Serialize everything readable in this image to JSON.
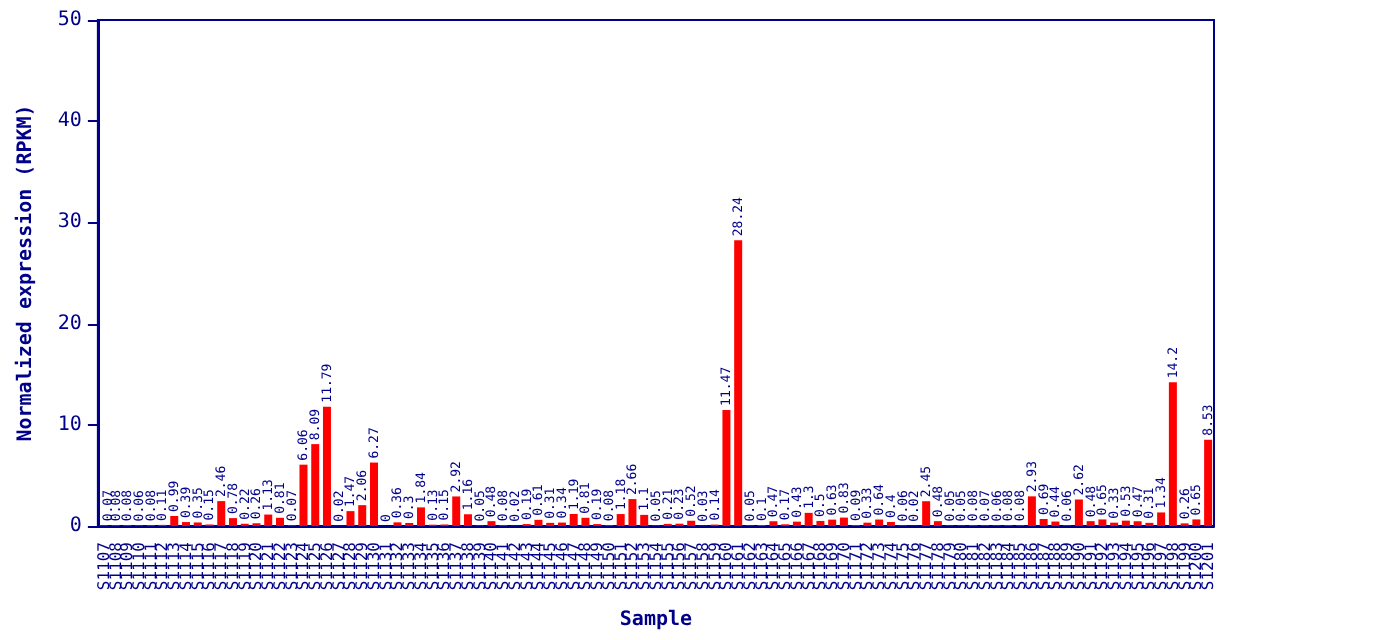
{
  "chart_data": {
    "type": "bar",
    "xlabel": "Sample",
    "ylabel": "Normalized expression (RPKM)",
    "categories": [
      "S1107",
      "S1108",
      "S1109",
      "S1110",
      "S1111",
      "S1112",
      "S1113",
      "S1114",
      "S1115",
      "S1116",
      "S1117",
      "S1118",
      "S1119",
      "S1120",
      "S1121",
      "S1122",
      "S1123",
      "S1124",
      "S1125",
      "S1126",
      "S1127",
      "S1128",
      "S1129",
      "S1130",
      "S1131",
      "S1132",
      "S1133",
      "S1134",
      "S1135",
      "S1136",
      "S1137",
      "S1138",
      "S1139",
      "S1140",
      "S1141",
      "S1142",
      "S1143",
      "S1144",
      "S1145",
      "S1146",
      "S1147",
      "S1148",
      "S1149",
      "S1150",
      "S1151",
      "S1152",
      "S1153",
      "S1154",
      "S1155",
      "S1156",
      "S1157",
      "S1158",
      "S1159",
      "S1160",
      "S1161",
      "S1162",
      "S1163",
      "S1164",
      "S1165",
      "S1166",
      "S1167",
      "S1168",
      "S1169",
      "S1170",
      "S1171",
      "S1172",
      "S1173",
      "S1174",
      "S1175",
      "S1176",
      "S1177",
      "S1178",
      "S1179",
      "S1180",
      "S1181",
      "S1182",
      "S1183",
      "S1184",
      "S1185",
      "S1186",
      "S1187",
      "S1188",
      "S1189",
      "S1190",
      "S1191",
      "S1192",
      "S1193",
      "S1194",
      "S1195",
      "S1196",
      "S1197",
      "S1198",
      "S1199",
      "S1200",
      "S1201"
    ],
    "values": [
      0.07,
      0.08,
      0.08,
      0.06,
      0.08,
      0.11,
      0.99,
      0.39,
      0.35,
      0.15,
      2.46,
      0.78,
      0.22,
      0.26,
      1.13,
      0.81,
      0.07,
      6.06,
      8.09,
      11.79,
      0.02,
      1.47,
      2.06,
      6.27,
      0,
      0.36,
      0.3,
      1.84,
      0.13,
      0.15,
      2.92,
      1.16,
      0.05,
      0.48,
      0.08,
      0.02,
      0.19,
      0.61,
      0.31,
      0.34,
      1.19,
      0.81,
      0.19,
      0.08,
      1.18,
      2.66,
      1.1,
      0.05,
      0.21,
      0.23,
      0.52,
      0.03,
      0.14,
      11.47,
      28.24,
      0.05,
      0.1,
      0.47,
      0.17,
      0.43,
      1.3,
      0.5,
      0.63,
      0.83,
      0.09,
      0.33,
      0.64,
      0.4,
      0.06,
      0.02,
      2.45,
      0.48,
      0.05,
      0.05,
      0.08,
      0.07,
      0.06,
      0.08,
      0.08,
      2.93,
      0.69,
      0.44,
      0.06,
      2.62,
      0.48,
      0.65,
      0.33,
      0.53,
      0.47,
      0.31,
      1.34,
      14.2,
      0.26,
      0.65,
      8.53
    ],
    "color": "#ff0000",
    "data_labels": true,
    "ylim": [
      0,
      50
    ],
    "yticks": [
      0,
      10,
      20,
      30,
      40,
      50
    ],
    "grid": false
  }
}
